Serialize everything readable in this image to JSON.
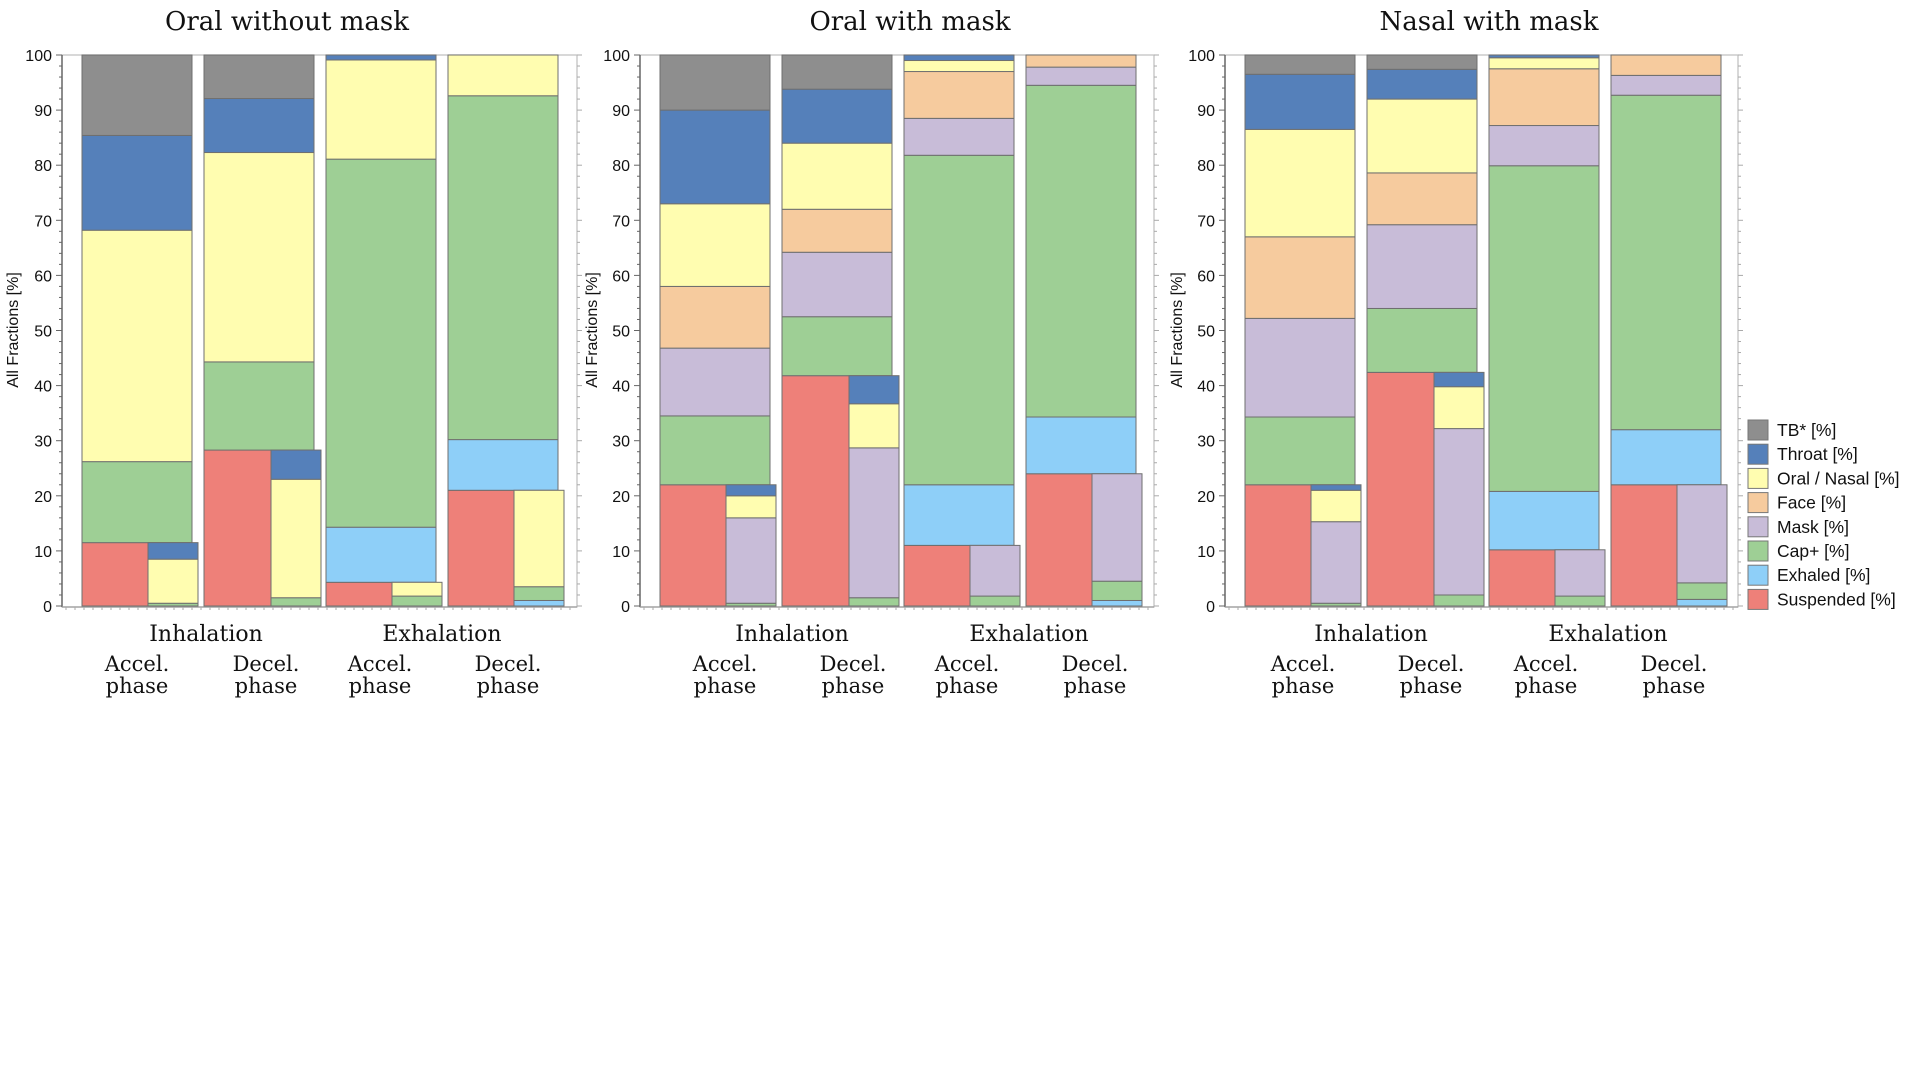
{
  "colors": {
    "TB": "#8e8e8e",
    "Throat": "#5580ba",
    "OralNasal": "#fffdb0",
    "Face": "#f6cb9e",
    "Mask": "#c8bcd8",
    "Cap": "#9ecf95",
    "Exhaled": "#8ecff8",
    "Suspended": "#ee8079"
  },
  "legend": [
    {
      "key": "TB",
      "label": "TB* [%]"
    },
    {
      "key": "Throat",
      "label": "Throat [%]"
    },
    {
      "key": "OralNasal",
      "label": "Oral / Nasal [%]"
    },
    {
      "key": "Face",
      "label": "Face [%]"
    },
    {
      "key": "Mask",
      "label": "Mask [%]"
    },
    {
      "key": "Cap",
      "label": "Cap+ [%]"
    },
    {
      "key": "Exhaled",
      "label": "Exhaled [%]"
    },
    {
      "key": "Suspended",
      "label": "Suspended [%]"
    }
  ],
  "chart_data": [
    {
      "type": "bar",
      "title": "Oral without mask",
      "ylabel": "All Fractions [%]",
      "ylim": [
        0,
        100
      ],
      "yticks": [
        0,
        10,
        20,
        30,
        40,
        50,
        60,
        70,
        80,
        90,
        100
      ],
      "groups": [
        "Inhalation",
        "Exhalation"
      ],
      "phases": [
        "Accel.",
        "phase",
        "Decel.",
        "phase"
      ],
      "bars": [
        {
          "group": "Inhalation",
          "phase": "Accel.",
          "stack": "cumulative",
          "segments": [
            {
              "key": "Suspended",
              "value": 11.5
            },
            {
              "key": "Cap",
              "value": 14.7
            },
            {
              "key": "OralNasal",
              "value": 42.0
            },
            {
              "key": "Throat",
              "value": 17.2
            },
            {
              "key": "TB",
              "value": 14.6
            }
          ]
        },
        {
          "group": "Inhalation",
          "phase": "Accel.",
          "stack": "suspended",
          "segments": [
            {
              "key": "Cap",
              "value": 0.5
            },
            {
              "key": "OralNasal",
              "value": 8.0
            },
            {
              "key": "Throat",
              "value": 3.0
            }
          ]
        },
        {
          "group": "Inhalation",
          "phase": "Decel.",
          "stack": "cumulative",
          "segments": [
            {
              "key": "Suspended",
              "value": 28.3
            },
            {
              "key": "Cap",
              "value": 16.0
            },
            {
              "key": "OralNasal",
              "value": 38.0
            },
            {
              "key": "Throat",
              "value": 9.8
            },
            {
              "key": "TB",
              "value": 7.9
            }
          ]
        },
        {
          "group": "Inhalation",
          "phase": "Decel.",
          "stack": "suspended",
          "segments": [
            {
              "key": "Cap",
              "value": 1.5
            },
            {
              "key": "OralNasal",
              "value": 21.5
            },
            {
              "key": "Throat",
              "value": 5.3
            }
          ]
        },
        {
          "group": "Exhalation",
          "phase": "Accel.",
          "stack": "cumulative",
          "segments": [
            {
              "key": "Suspended",
              "value": 4.3
            },
            {
              "key": "Exhaled",
              "value": 10.0
            },
            {
              "key": "Cap",
              "value": 66.8
            },
            {
              "key": "OralNasal",
              "value": 18.0
            },
            {
              "key": "Throat",
              "value": 0.9
            }
          ]
        },
        {
          "group": "Exhalation",
          "phase": "Accel.",
          "stack": "suspended",
          "segments": [
            {
              "key": "Cap",
              "value": 1.8
            },
            {
              "key": "OralNasal",
              "value": 2.5
            }
          ]
        },
        {
          "group": "Exhalation",
          "phase": "Decel.",
          "stack": "cumulative",
          "segments": [
            {
              "key": "Suspended",
              "value": 21.0
            },
            {
              "key": "Exhaled",
              "value": 9.2
            },
            {
              "key": "Cap",
              "value": 62.4
            },
            {
              "key": "OralNasal",
              "value": 7.4
            }
          ]
        },
        {
          "group": "Exhalation",
          "phase": "Decel.",
          "stack": "suspended",
          "segments": [
            {
              "key": "Exhaled",
              "value": 1.0
            },
            {
              "key": "Cap",
              "value": 2.5
            },
            {
              "key": "OralNasal",
              "value": 17.5
            }
          ]
        }
      ]
    },
    {
      "type": "bar",
      "title": "Oral with mask",
      "ylabel": "All Fractions [%]",
      "ylim": [
        0,
        100
      ],
      "yticks": [
        0,
        10,
        20,
        30,
        40,
        50,
        60,
        70,
        80,
        90,
        100
      ],
      "groups": [
        "Inhalation",
        "Exhalation"
      ],
      "phases": [
        "Accel.",
        "phase",
        "Decel.",
        "phase"
      ],
      "bars": [
        {
          "group": "Inhalation",
          "phase": "Accel.",
          "stack": "cumulative",
          "segments": [
            {
              "key": "Suspended",
              "value": 22.0
            },
            {
              "key": "Cap",
              "value": 12.5
            },
            {
              "key": "Mask",
              "value": 12.3
            },
            {
              "key": "Face",
              "value": 11.2
            },
            {
              "key": "OralNasal",
              "value": 15.0
            },
            {
              "key": "Throat",
              "value": 17.0
            },
            {
              "key": "TB",
              "value": 10.0
            }
          ]
        },
        {
          "group": "Inhalation",
          "phase": "Accel.",
          "stack": "suspended",
          "segments": [
            {
              "key": "Cap",
              "value": 0.5
            },
            {
              "key": "Mask",
              "value": 15.5
            },
            {
              "key": "OralNasal",
              "value": 4.0
            },
            {
              "key": "Throat",
              "value": 2.0
            }
          ]
        },
        {
          "group": "Inhalation",
          "phase": "Decel.",
          "stack": "cumulative",
          "segments": [
            {
              "key": "Suspended",
              "value": 41.8
            },
            {
              "key": "Cap",
              "value": 10.7
            },
            {
              "key": "Mask",
              "value": 11.7
            },
            {
              "key": "Face",
              "value": 7.8
            },
            {
              "key": "OralNasal",
              "value": 12.0
            },
            {
              "key": "Throat",
              "value": 9.8
            },
            {
              "key": "TB",
              "value": 6.2
            }
          ]
        },
        {
          "group": "Inhalation",
          "phase": "Decel.",
          "stack": "suspended",
          "segments": [
            {
              "key": "Cap",
              "value": 1.5
            },
            {
              "key": "Mask",
              "value": 27.2
            },
            {
              "key": "OralNasal",
              "value": 8.0
            },
            {
              "key": "Throat",
              "value": 5.1
            }
          ]
        },
        {
          "group": "Exhalation",
          "phase": "Accel.",
          "stack": "cumulative",
          "segments": [
            {
              "key": "Suspended",
              "value": 11.0
            },
            {
              "key": "Exhaled",
              "value": 11.0
            },
            {
              "key": "Cap",
              "value": 59.8
            },
            {
              "key": "Mask",
              "value": 6.7
            },
            {
              "key": "Face",
              "value": 8.5
            },
            {
              "key": "OralNasal",
              "value": 2.0
            },
            {
              "key": "Throat",
              "value": 1.0
            }
          ]
        },
        {
          "group": "Exhalation",
          "phase": "Accel.",
          "stack": "suspended",
          "segments": [
            {
              "key": "Cap",
              "value": 1.8
            },
            {
              "key": "Mask",
              "value": 9.2
            }
          ]
        },
        {
          "group": "Exhalation",
          "phase": "Decel.",
          "stack": "cumulative",
          "segments": [
            {
              "key": "Suspended",
              "value": 24.0
            },
            {
              "key": "Exhaled",
              "value": 10.3
            },
            {
              "key": "Cap",
              "value": 60.2
            },
            {
              "key": "Mask",
              "value": 3.3
            },
            {
              "key": "Face",
              "value": 2.2
            }
          ]
        },
        {
          "group": "Exhalation",
          "phase": "Decel.",
          "stack": "suspended",
          "segments": [
            {
              "key": "Exhaled",
              "value": 1.0
            },
            {
              "key": "Cap",
              "value": 3.5
            },
            {
              "key": "Mask",
              "value": 19.5
            }
          ]
        }
      ]
    },
    {
      "type": "bar",
      "title": "Nasal with mask",
      "ylabel": "All Fractions [%]",
      "ylim": [
        0,
        100
      ],
      "yticks": [
        0,
        10,
        20,
        30,
        40,
        50,
        60,
        70,
        80,
        90,
        100
      ],
      "groups": [
        "Inhalation",
        "Exhalation"
      ],
      "phases": [
        "Accel.",
        "phase",
        "Decel.",
        "phase"
      ],
      "bars": [
        {
          "group": "Inhalation",
          "phase": "Accel.",
          "stack": "cumulative",
          "segments": [
            {
              "key": "Suspended",
              "value": 22.0
            },
            {
              "key": "Cap",
              "value": 12.3
            },
            {
              "key": "Mask",
              "value": 17.9
            },
            {
              "key": "Face",
              "value": 14.8
            },
            {
              "key": "OralNasal",
              "value": 19.5
            },
            {
              "key": "Throat",
              "value": 10.0
            },
            {
              "key": "TB",
              "value": 3.5
            }
          ]
        },
        {
          "group": "Inhalation",
          "phase": "Accel.",
          "stack": "suspended",
          "segments": [
            {
              "key": "Cap",
              "value": 0.5
            },
            {
              "key": "Mask",
              "value": 14.8
            },
            {
              "key": "OralNasal",
              "value": 5.7
            },
            {
              "key": "Throat",
              "value": 1.0
            }
          ]
        },
        {
          "group": "Inhalation",
          "phase": "Decel.",
          "stack": "cumulative",
          "segments": [
            {
              "key": "Suspended",
              "value": 42.4
            },
            {
              "key": "Cap",
              "value": 11.6
            },
            {
              "key": "Mask",
              "value": 15.2
            },
            {
              "key": "Face",
              "value": 9.4
            },
            {
              "key": "OralNasal",
              "value": 13.4
            },
            {
              "key": "Throat",
              "value": 5.4
            },
            {
              "key": "TB",
              "value": 2.6
            }
          ]
        },
        {
          "group": "Inhalation",
          "phase": "Decel.",
          "stack": "suspended",
          "segments": [
            {
              "key": "Cap",
              "value": 2.0
            },
            {
              "key": "Mask",
              "value": 30.2
            },
            {
              "key": "OralNasal",
              "value": 7.6
            },
            {
              "key": "Throat",
              "value": 2.6
            }
          ]
        },
        {
          "group": "Exhalation",
          "phase": "Accel.",
          "stack": "cumulative",
          "segments": [
            {
              "key": "Suspended",
              "value": 10.2
            },
            {
              "key": "Exhaled",
              "value": 10.6
            },
            {
              "key": "Cap",
              "value": 59.1
            },
            {
              "key": "Mask",
              "value": 7.3
            },
            {
              "key": "Face",
              "value": 10.3
            },
            {
              "key": "OralNasal",
              "value": 2.0
            },
            {
              "key": "Throat",
              "value": 0.5
            }
          ]
        },
        {
          "group": "Exhalation",
          "phase": "Accel.",
          "stack": "suspended",
          "segments": [
            {
              "key": "Cap",
              "value": 1.8
            },
            {
              "key": "Mask",
              "value": 8.4
            }
          ]
        },
        {
          "group": "Exhalation",
          "phase": "Decel.",
          "stack": "cumulative",
          "segments": [
            {
              "key": "Suspended",
              "value": 22.0
            },
            {
              "key": "Exhaled",
              "value": 10.0
            },
            {
              "key": "Cap",
              "value": 60.7
            },
            {
              "key": "Mask",
              "value": 3.6
            },
            {
              "key": "Face",
              "value": 3.7
            }
          ]
        },
        {
          "group": "Exhalation",
          "phase": "Decel.",
          "stack": "suspended",
          "segments": [
            {
              "key": "Exhaled",
              "value": 1.2
            },
            {
              "key": "Cap",
              "value": 3.0
            },
            {
              "key": "Mask",
              "value": 17.8
            }
          ]
        }
      ]
    }
  ]
}
